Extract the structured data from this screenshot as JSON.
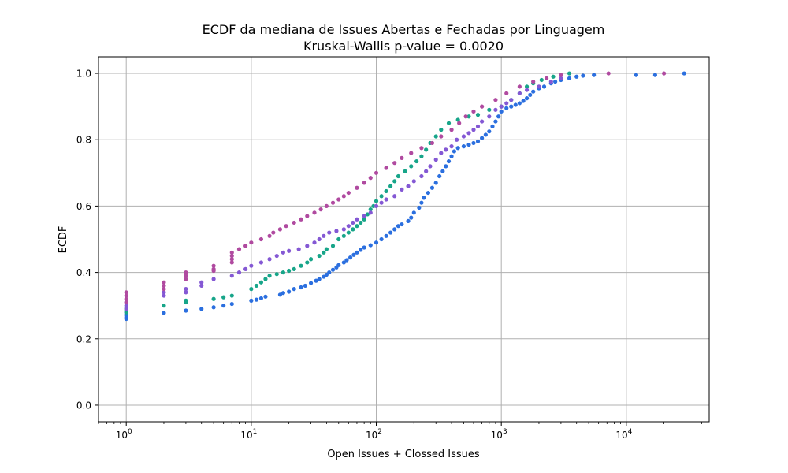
{
  "chart_data": {
    "type": "scatter",
    "title": "ECDF da mediana de Issues Abertas e Fechadas por Linguagem",
    "subtitle": "Kruskal-Wallis p-value = 0.0020",
    "xlabel": "Open Issues + Clossed Issues",
    "ylabel": "ECDF",
    "xscale": "log",
    "xlim": [
      0.6,
      46000
    ],
    "ylim": [
      -0.05,
      1.05
    ],
    "grid": true,
    "x_ticks": [
      {
        "base": "10",
        "exp": "0"
      },
      {
        "base": "10",
        "exp": "1"
      },
      {
        "base": "10",
        "exp": "2"
      },
      {
        "base": "10",
        "exp": "3"
      },
      {
        "base": "10",
        "exp": "4"
      }
    ],
    "y_ticks": [
      "0.0",
      "0.2",
      "0.4",
      "0.6",
      "0.8",
      "1.0"
    ],
    "series": [
      {
        "color": "#2b6fdf",
        "points": [
          [
            1,
            0.26
          ],
          [
            1,
            0.265
          ],
          [
            1,
            0.27
          ],
          [
            1,
            0.275
          ],
          [
            1,
            0.28
          ],
          [
            2,
            0.278
          ],
          [
            3,
            0.285
          ],
          [
            4,
            0.29
          ],
          [
            5,
            0.295
          ],
          [
            6,
            0.3
          ],
          [
            7,
            0.305
          ],
          [
            10,
            0.315
          ],
          [
            11,
            0.318
          ],
          [
            12,
            0.322
          ],
          [
            13,
            0.327
          ],
          [
            17,
            0.333
          ],
          [
            18,
            0.338
          ],
          [
            20,
            0.342
          ],
          [
            22,
            0.35
          ],
          [
            25,
            0.355
          ],
          [
            27,
            0.36
          ],
          [
            30,
            0.368
          ],
          [
            33,
            0.375
          ],
          [
            35,
            0.38
          ],
          [
            38,
            0.387
          ],
          [
            40,
            0.393
          ],
          [
            42,
            0.4
          ],
          [
            45,
            0.408
          ],
          [
            48,
            0.415
          ],
          [
            50,
            0.422
          ],
          [
            55,
            0.43
          ],
          [
            58,
            0.437
          ],
          [
            62,
            0.445
          ],
          [
            66,
            0.453
          ],
          [
            70,
            0.46
          ],
          [
            75,
            0.468
          ],
          [
            80,
            0.475
          ],
          [
            90,
            0.482
          ],
          [
            100,
            0.49
          ],
          [
            110,
            0.5
          ],
          [
            120,
            0.51
          ],
          [
            130,
            0.52
          ],
          [
            140,
            0.53
          ],
          [
            150,
            0.54
          ],
          [
            160,
            0.545
          ],
          [
            180,
            0.555
          ],
          [
            190,
            0.565
          ],
          [
            200,
            0.58
          ],
          [
            220,
            0.595
          ],
          [
            230,
            0.61
          ],
          [
            240,
            0.625
          ],
          [
            260,
            0.64
          ],
          [
            280,
            0.655
          ],
          [
            300,
            0.67
          ],
          [
            320,
            0.69
          ],
          [
            340,
            0.705
          ],
          [
            360,
            0.72
          ],
          [
            380,
            0.735
          ],
          [
            400,
            0.75
          ],
          [
            420,
            0.765
          ],
          [
            450,
            0.775
          ],
          [
            500,
            0.78
          ],
          [
            550,
            0.785
          ],
          [
            600,
            0.79
          ],
          [
            650,
            0.795
          ],
          [
            700,
            0.805
          ],
          [
            750,
            0.815
          ],
          [
            800,
            0.825
          ],
          [
            850,
            0.84
          ],
          [
            900,
            0.855
          ],
          [
            950,
            0.87
          ],
          [
            1000,
            0.885
          ],
          [
            1100,
            0.895
          ],
          [
            1200,
            0.9
          ],
          [
            1300,
            0.905
          ],
          [
            1400,
            0.91
          ],
          [
            1500,
            0.917
          ],
          [
            1600,
            0.925
          ],
          [
            1700,
            0.935
          ],
          [
            1800,
            0.945
          ],
          [
            2000,
            0.955
          ],
          [
            2200,
            0.96
          ],
          [
            2500,
            0.97
          ],
          [
            2700,
            0.975
          ],
          [
            3000,
            0.98
          ],
          [
            3500,
            0.985
          ],
          [
            4000,
            0.99
          ],
          [
            4500,
            0.993
          ],
          [
            5500,
            0.995
          ],
          [
            12000,
            0.995
          ],
          [
            17000,
            0.995
          ],
          [
            29000,
            1.0
          ]
        ]
      },
      {
        "color": "#17a589",
        "points": [
          [
            1,
            0.28
          ],
          [
            1,
            0.285
          ],
          [
            1,
            0.29
          ],
          [
            1,
            0.295
          ],
          [
            2,
            0.3
          ],
          [
            3,
            0.31
          ],
          [
            3,
            0.315
          ],
          [
            5,
            0.32
          ],
          [
            6,
            0.325
          ],
          [
            7,
            0.33
          ],
          [
            10,
            0.35
          ],
          [
            11,
            0.36
          ],
          [
            12,
            0.37
          ],
          [
            13,
            0.38
          ],
          [
            14,
            0.39
          ],
          [
            16,
            0.395
          ],
          [
            18,
            0.4
          ],
          [
            20,
            0.405
          ],
          [
            22,
            0.41
          ],
          [
            25,
            0.42
          ],
          [
            28,
            0.43
          ],
          [
            30,
            0.44
          ],
          [
            35,
            0.45
          ],
          [
            38,
            0.46
          ],
          [
            40,
            0.47
          ],
          [
            45,
            0.48
          ],
          [
            50,
            0.5
          ],
          [
            55,
            0.51
          ],
          [
            60,
            0.52
          ],
          [
            65,
            0.53
          ],
          [
            70,
            0.54
          ],
          [
            75,
            0.55
          ],
          [
            80,
            0.56
          ],
          [
            85,
            0.575
          ],
          [
            90,
            0.59
          ],
          [
            95,
            0.6
          ],
          [
            100,
            0.615
          ],
          [
            110,
            0.63
          ],
          [
            120,
            0.645
          ],
          [
            130,
            0.66
          ],
          [
            140,
            0.675
          ],
          [
            150,
            0.69
          ],
          [
            170,
            0.705
          ],
          [
            190,
            0.72
          ],
          [
            210,
            0.735
          ],
          [
            230,
            0.75
          ],
          [
            250,
            0.77
          ],
          [
            270,
            0.79
          ],
          [
            300,
            0.81
          ],
          [
            330,
            0.83
          ],
          [
            380,
            0.85
          ],
          [
            450,
            0.86
          ],
          [
            550,
            0.87
          ],
          [
            650,
            0.875
          ],
          [
            800,
            0.89
          ],
          [
            1000,
            0.9
          ],
          [
            1200,
            0.92
          ],
          [
            1400,
            0.94
          ],
          [
            1600,
            0.96
          ],
          [
            1800,
            0.97
          ],
          [
            2100,
            0.98
          ],
          [
            2600,
            0.99
          ],
          [
            3500,
            1.0
          ]
        ]
      },
      {
        "color": "#8458d4",
        "points": [
          [
            1,
            0.29
          ],
          [
            1,
            0.3
          ],
          [
            1,
            0.31
          ],
          [
            2,
            0.33
          ],
          [
            2,
            0.34
          ],
          [
            3,
            0.34
          ],
          [
            3,
            0.35
          ],
          [
            4,
            0.36
          ],
          [
            4,
            0.37
          ],
          [
            5,
            0.38
          ],
          [
            7,
            0.39
          ],
          [
            8,
            0.4
          ],
          [
            9,
            0.41
          ],
          [
            10,
            0.42
          ],
          [
            12,
            0.43
          ],
          [
            14,
            0.44
          ],
          [
            16,
            0.45
          ],
          [
            18,
            0.46
          ],
          [
            20,
            0.465
          ],
          [
            24,
            0.47
          ],
          [
            28,
            0.48
          ],
          [
            32,
            0.49
          ],
          [
            35,
            0.5
          ],
          [
            38,
            0.51
          ],
          [
            42,
            0.52
          ],
          [
            48,
            0.525
          ],
          [
            55,
            0.53
          ],
          [
            60,
            0.54
          ],
          [
            65,
            0.55
          ],
          [
            70,
            0.56
          ],
          [
            80,
            0.57
          ],
          [
            90,
            0.58
          ],
          [
            100,
            0.6
          ],
          [
            110,
            0.61
          ],
          [
            120,
            0.62
          ],
          [
            140,
            0.63
          ],
          [
            160,
            0.65
          ],
          [
            180,
            0.66
          ],
          [
            200,
            0.675
          ],
          [
            230,
            0.69
          ],
          [
            250,
            0.705
          ],
          [
            270,
            0.72
          ],
          [
            300,
            0.74
          ],
          [
            330,
            0.76
          ],
          [
            360,
            0.77
          ],
          [
            400,
            0.78
          ],
          [
            440,
            0.8
          ],
          [
            500,
            0.81
          ],
          [
            550,
            0.82
          ],
          [
            600,
            0.83
          ],
          [
            650,
            0.84
          ],
          [
            700,
            0.855
          ],
          [
            800,
            0.87
          ],
          [
            900,
            0.89
          ],
          [
            1000,
            0.9
          ],
          [
            1100,
            0.91
          ],
          [
            1200,
            0.92
          ],
          [
            1400,
            0.94
          ],
          [
            1600,
            0.95
          ],
          [
            2000,
            0.96
          ],
          [
            2500,
            0.975
          ],
          [
            3000,
            0.985
          ]
        ]
      },
      {
        "color": "#b04aa0",
        "points": [
          [
            1,
            0.31
          ],
          [
            1,
            0.32
          ],
          [
            1,
            0.33
          ],
          [
            1,
            0.34
          ],
          [
            2,
            0.35
          ],
          [
            2,
            0.36
          ],
          [
            2,
            0.37
          ],
          [
            3,
            0.38
          ],
          [
            3,
            0.39
          ],
          [
            3,
            0.4
          ],
          [
            5,
            0.405
          ],
          [
            5,
            0.41
          ],
          [
            5,
            0.42
          ],
          [
            7,
            0.43
          ],
          [
            7,
            0.44
          ],
          [
            7,
            0.45
          ],
          [
            7,
            0.46
          ],
          [
            8,
            0.47
          ],
          [
            9,
            0.48
          ],
          [
            10,
            0.49
          ],
          [
            12,
            0.5
          ],
          [
            14,
            0.51
          ],
          [
            15,
            0.52
          ],
          [
            17,
            0.53
          ],
          [
            19,
            0.54
          ],
          [
            22,
            0.55
          ],
          [
            25,
            0.56
          ],
          [
            28,
            0.57
          ],
          [
            32,
            0.58
          ],
          [
            36,
            0.59
          ],
          [
            40,
            0.6
          ],
          [
            45,
            0.61
          ],
          [
            50,
            0.62
          ],
          [
            55,
            0.63
          ],
          [
            60,
            0.64
          ],
          [
            70,
            0.655
          ],
          [
            80,
            0.67
          ],
          [
            90,
            0.685
          ],
          [
            100,
            0.7
          ],
          [
            120,
            0.715
          ],
          [
            140,
            0.73
          ],
          [
            160,
            0.745
          ],
          [
            190,
            0.76
          ],
          [
            230,
            0.775
          ],
          [
            280,
            0.79
          ],
          [
            330,
            0.81
          ],
          [
            400,
            0.83
          ],
          [
            460,
            0.85
          ],
          [
            520,
            0.87
          ],
          [
            600,
            0.885
          ],
          [
            700,
            0.9
          ],
          [
            900,
            0.92
          ],
          [
            1100,
            0.94
          ],
          [
            1400,
            0.96
          ],
          [
            1800,
            0.975
          ],
          [
            2300,
            0.985
          ],
          [
            3000,
            0.995
          ],
          [
            7200,
            1.0
          ],
          [
            20000,
            1.0
          ]
        ]
      }
    ]
  }
}
